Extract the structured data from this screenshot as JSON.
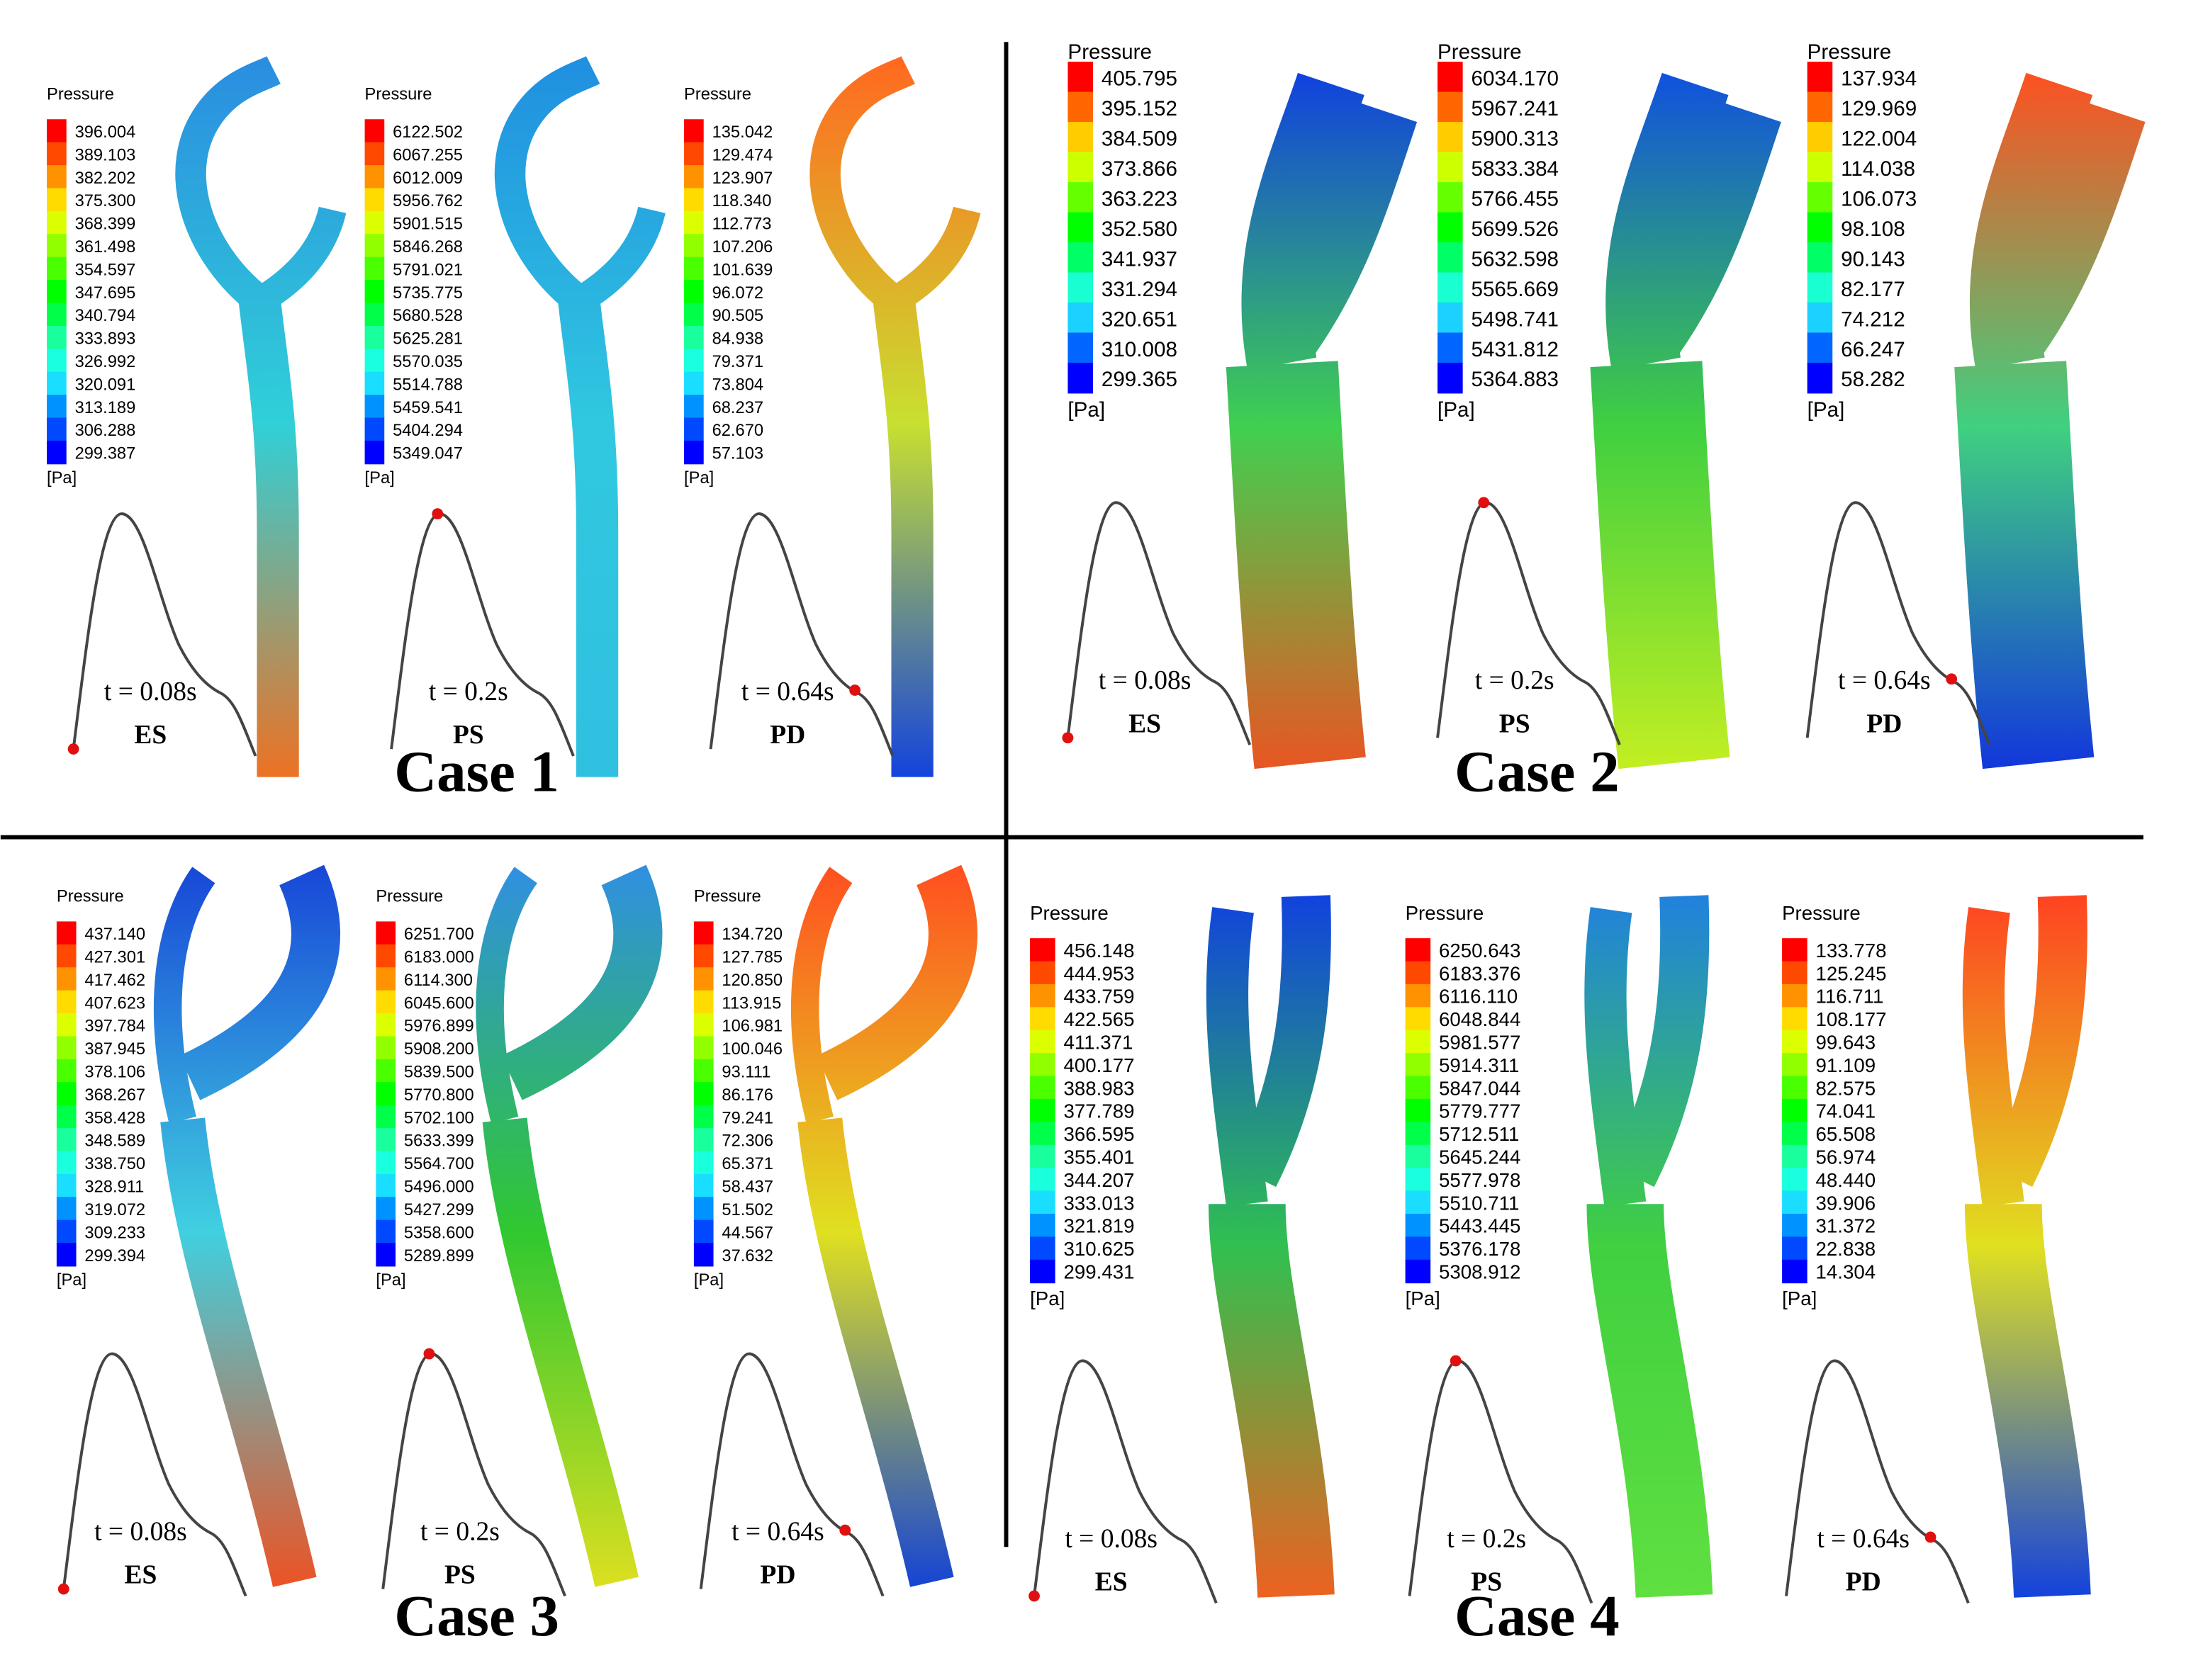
{
  "cases": [
    {
      "label": "Case 1",
      "panels": [
        {
          "legend": {
            "title": "Pressure",
            "values": [
              "396.004",
              "389.103",
              "382.202",
              "375.300",
              "368.399",
              "361.498",
              "354.597",
              "347.695",
              "340.794",
              "333.893",
              "326.992",
              "320.091",
              "313.189",
              "306.288",
              "299.387"
            ],
            "unit": "[Pa]"
          },
          "time": "t = 0.08s",
          "phase": "ES"
        },
        {
          "legend": {
            "title": "Pressure",
            "values": [
              "6122.502",
              "6067.255",
              "6012.009",
              "5956.762",
              "5901.515",
              "5846.268",
              "5791.021",
              "5735.775",
              "5680.528",
              "5625.281",
              "5570.035",
              "5514.788",
              "5459.541",
              "5404.294",
              "5349.047"
            ],
            "unit": "[Pa]"
          },
          "time": "t = 0.2s",
          "phase": "PS"
        },
        {
          "legend": {
            "title": "Pressure",
            "values": [
              "135.042",
              "129.474",
              "123.907",
              "118.340",
              "112.773",
              "107.206",
              "101.639",
              "96.072",
              "90.505",
              "84.938",
              "79.371",
              "73.804",
              "68.237",
              "62.670",
              "57.103"
            ],
            "unit": "[Pa]"
          },
          "time": "t = 0.64s",
          "phase": "PD"
        }
      ]
    },
    {
      "label": "Case 2",
      "panels": [
        {
          "legend": {
            "title": "Pressure",
            "values": [
              "405.795",
              "395.152",
              "384.509",
              "373.866",
              "363.223",
              "352.580",
              "341.937",
              "331.294",
              "320.651",
              "310.008",
              "299.365"
            ],
            "unit": "[Pa]"
          },
          "time": "t = 0.08s",
          "phase": "ES"
        },
        {
          "legend": {
            "title": "Pressure",
            "values": [
              "6034.170",
              "5967.241",
              "5900.313",
              "5833.384",
              "5766.455",
              "5699.526",
              "5632.598",
              "5565.669",
              "5498.741",
              "5431.812",
              "5364.883"
            ],
            "unit": "[Pa]"
          },
          "time": "t = 0.2s",
          "phase": "PS"
        },
        {
          "legend": {
            "title": "Pressure",
            "values": [
              "137.934",
              "129.969",
              "122.004",
              "114.038",
              "106.073",
              "98.108",
              "90.143",
              "82.177",
              "74.212",
              "66.247",
              "58.282"
            ],
            "unit": "[Pa]"
          },
          "time": "t = 0.64s",
          "phase": "PD"
        }
      ]
    },
    {
      "label": "Case 3",
      "panels": [
        {
          "legend": {
            "title": "Pressure",
            "values": [
              "437.140",
              "427.301",
              "417.462",
              "407.623",
              "397.784",
              "387.945",
              "378.106",
              "368.267",
              "358.428",
              "348.589",
              "338.750",
              "328.911",
              "319.072",
              "309.233",
              "299.394"
            ],
            "unit": "[Pa]"
          },
          "time": "t = 0.08s",
          "phase": "ES"
        },
        {
          "legend": {
            "title": "Pressure",
            "values": [
              "6251.700",
              "6183.000",
              "6114.300",
              "6045.600",
              "5976.899",
              "5908.200",
              "5839.500",
              "5770.800",
              "5702.100",
              "5633.399",
              "5564.700",
              "5496.000",
              "5427.299",
              "5358.600",
              "5289.899"
            ],
            "unit": "[Pa]"
          },
          "time": "t = 0.2s",
          "phase": "PS"
        },
        {
          "legend": {
            "title": "Pressure",
            "values": [
              "134.720",
              "127.785",
              "120.850",
              "113.915",
              "106.981",
              "100.046",
              "93.111",
              "86.176",
              "79.241",
              "72.306",
              "65.371",
              "58.437",
              "51.502",
              "44.567",
              "37.632"
            ],
            "unit": "[Pa]"
          },
          "time": "t = 0.64s",
          "phase": "PD"
        }
      ]
    },
    {
      "label": "Case 4",
      "panels": [
        {
          "legend": {
            "title": "Pressure",
            "values": [
              "456.148",
              "444.953",
              "433.759",
              "422.565",
              "411.371",
              "400.177",
              "388.983",
              "377.789",
              "366.595",
              "355.401",
              "344.207",
              "333.013",
              "321.819",
              "310.625",
              "299.431"
            ],
            "unit": "[Pa]"
          },
          "time": "t = 0.08s",
          "phase": "ES"
        },
        {
          "legend": {
            "title": "Pressure",
            "values": [
              "6250.643",
              "6183.376",
              "6116.110",
              "6048.844",
              "5981.577",
              "5914.311",
              "5847.044",
              "5779.777",
              "5712.511",
              "5645.244",
              "5577.978",
              "5510.711",
              "5443.445",
              "5376.178",
              "5308.912"
            ],
            "unit": "[Pa]"
          },
          "time": "t = 0.2s",
          "phase": "PS"
        },
        {
          "legend": {
            "title": "Pressure",
            "values": [
              "133.778",
              "125.245",
              "116.711",
              "108.177",
              "99.643",
              "91.109",
              "82.575",
              "74.041",
              "65.508",
              "56.974",
              "48.440",
              "39.906",
              "31.372",
              "22.838",
              "14.304"
            ],
            "unit": "[Pa]"
          },
          "time": "t = 0.64s",
          "phase": "PD"
        }
      ]
    }
  ]
}
